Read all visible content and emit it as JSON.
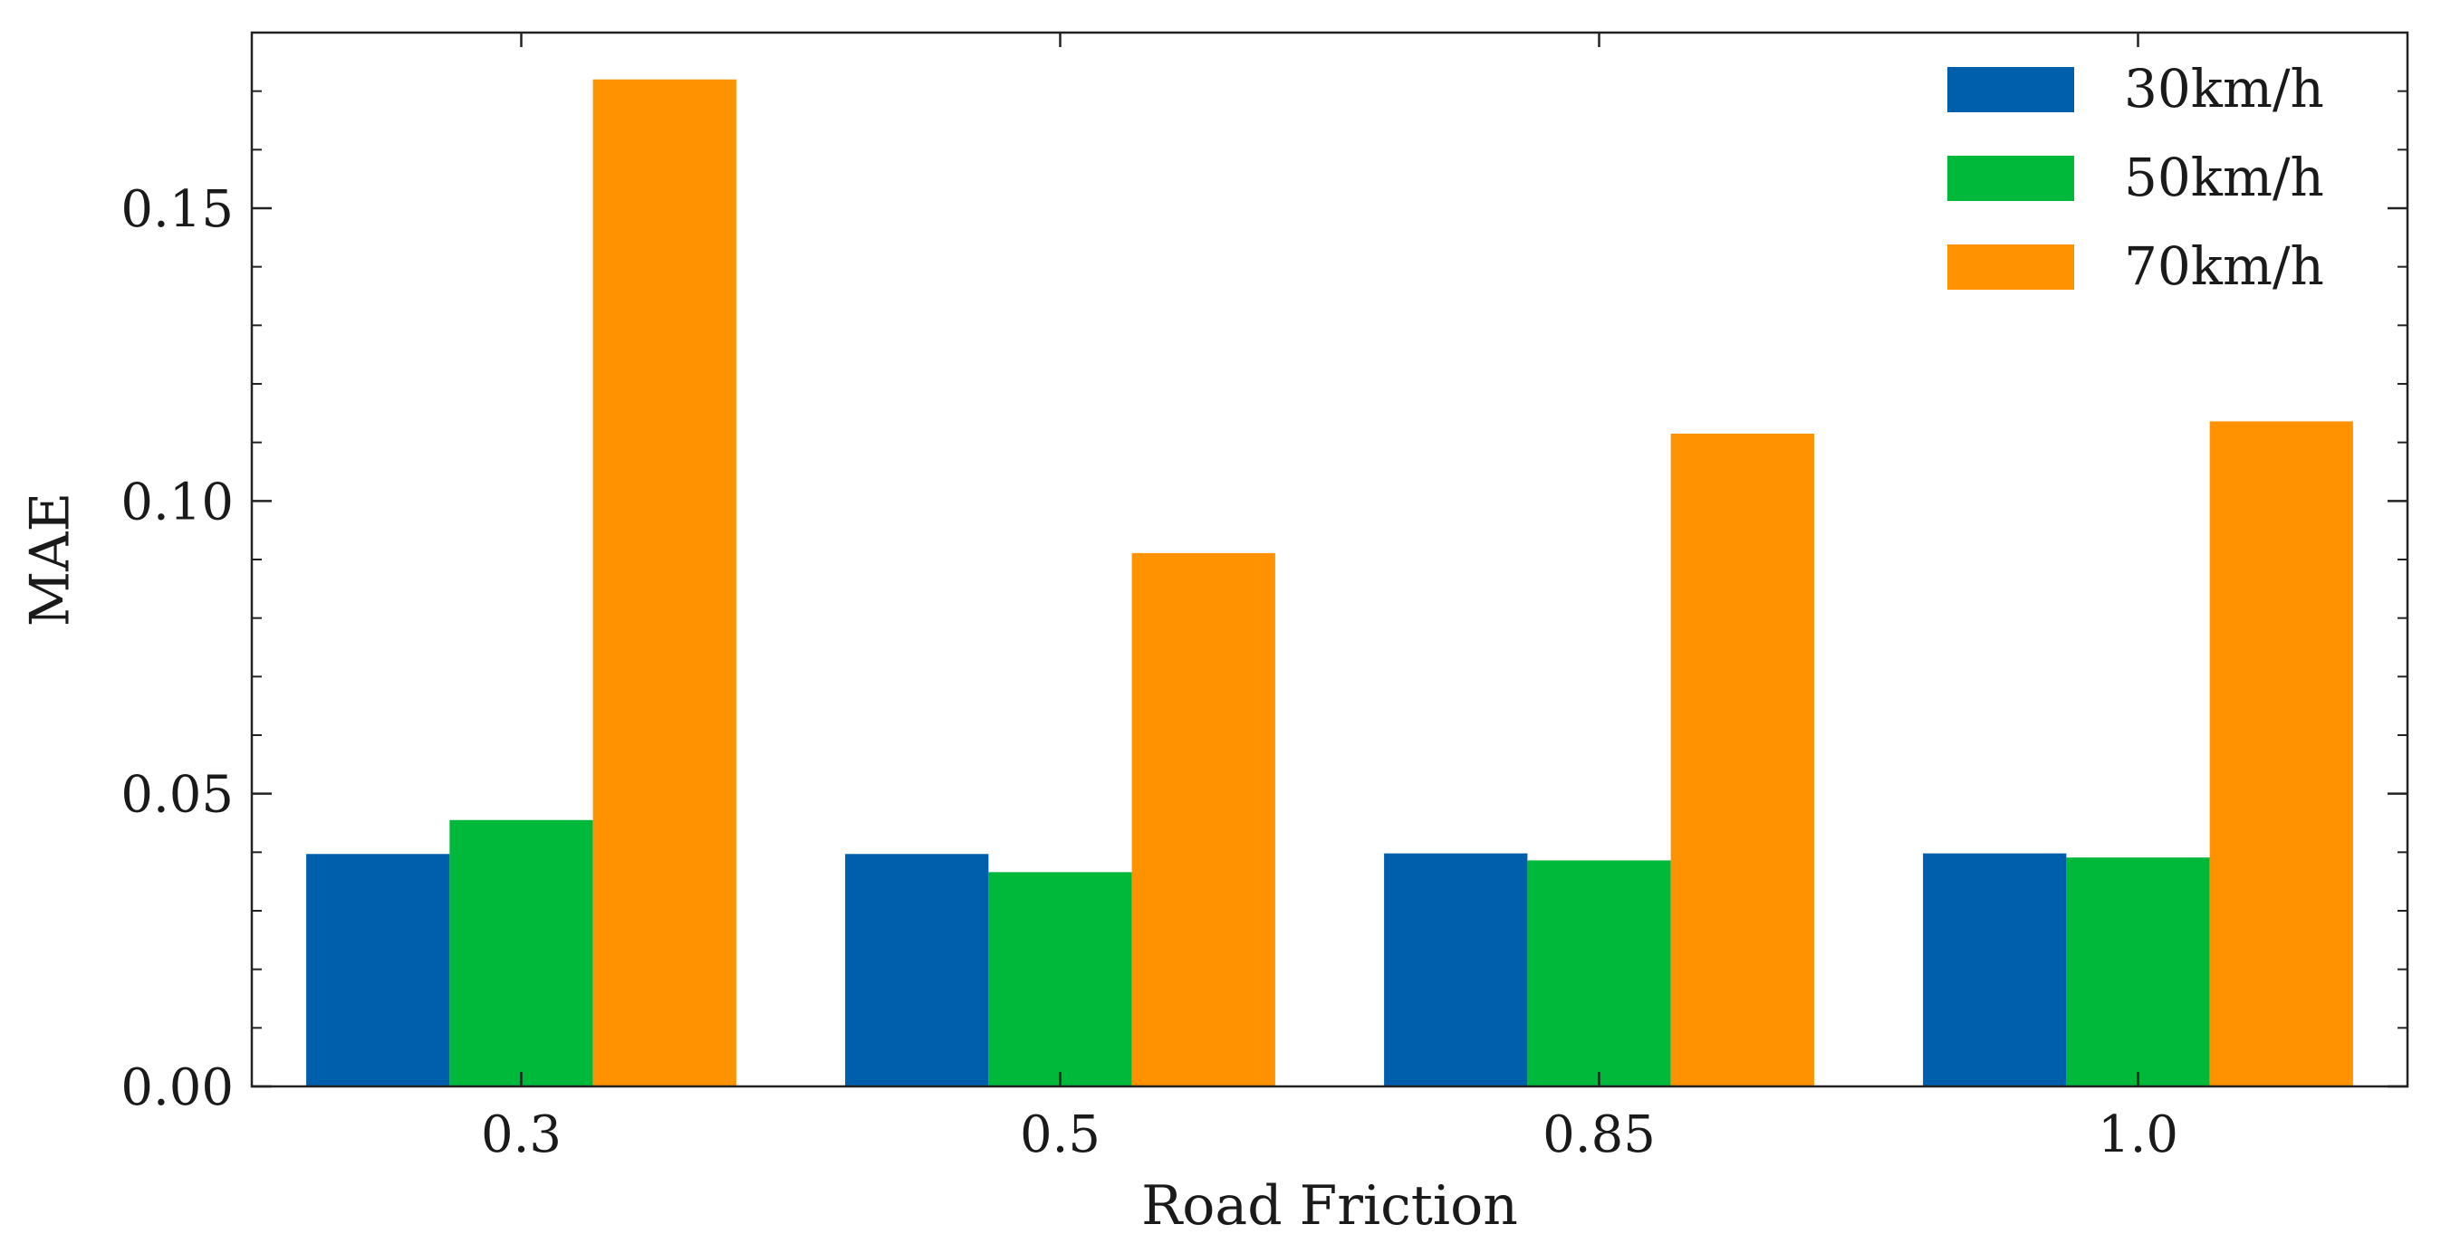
{
  "chart_data": {
    "type": "bar",
    "xlabel": "Road Friction",
    "ylabel": "MAE",
    "categories": [
      "0.3",
      "0.5",
      "0.85",
      "1.0"
    ],
    "series": [
      {
        "name": "30km/h",
        "color": "#005fac",
        "values": [
          0.0397,
          0.0397,
          0.0398,
          0.0398
        ]
      },
      {
        "name": "50km/h",
        "color": "#00b93a",
        "values": [
          0.0455,
          0.0366,
          0.0386,
          0.0391
        ]
      },
      {
        "name": "70km/h",
        "color": "#ff9200",
        "values": [
          0.172,
          0.0911,
          0.1115,
          0.1136
        ]
      }
    ],
    "ylim": [
      0,
      0.18
    ],
    "yticks": [
      "0.00",
      "0.05",
      "0.10",
      "0.15"
    ],
    "ytick_values": [
      0,
      0.05,
      0.1,
      0.15
    ],
    "yminor_step": 0.01,
    "grid": false,
    "legend_position": "top-right"
  }
}
